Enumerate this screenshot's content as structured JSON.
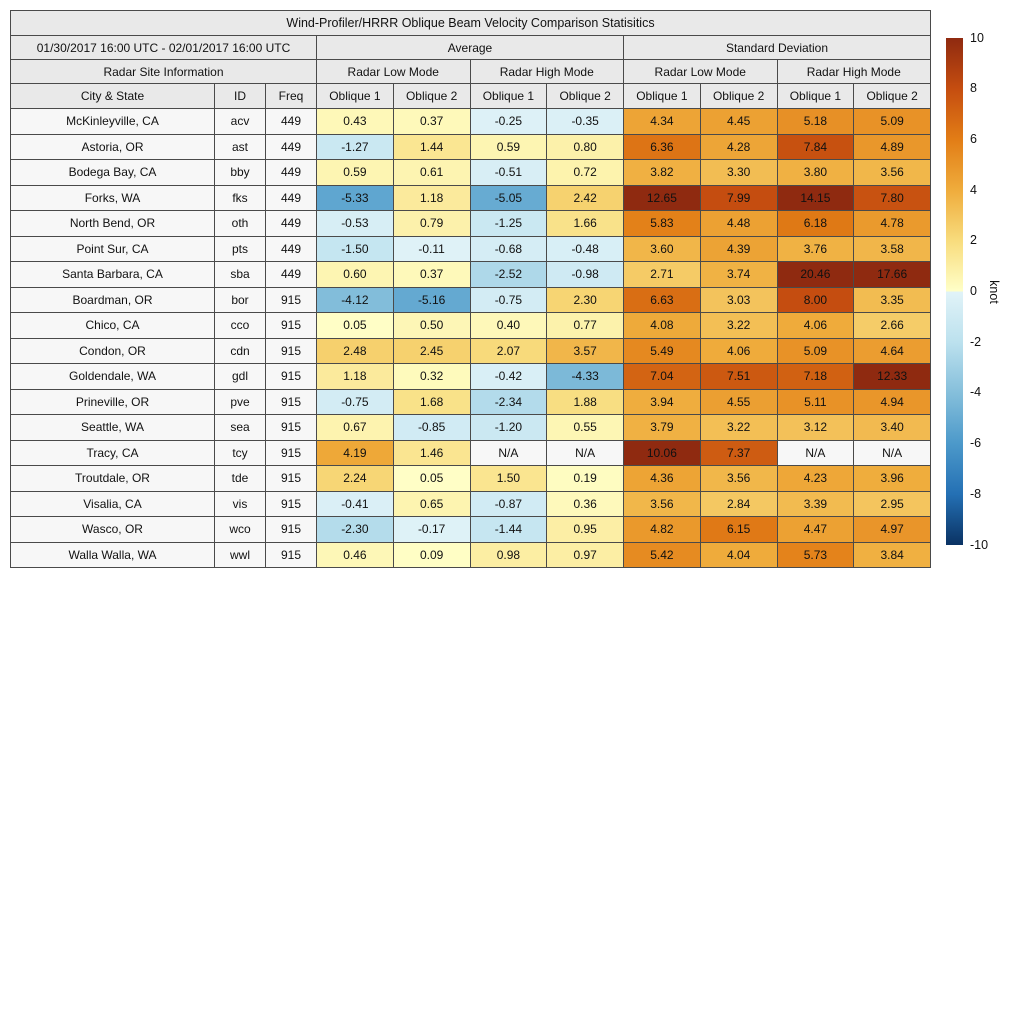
{
  "chart_data": {
    "type": "table",
    "title": "Wind-Profiler/HRRR Oblique Beam Velocity Comparison Statisitics",
    "date_range": "01/30/2017 16:00 UTC - 02/01/2017 16:00 UTC",
    "group_headers": {
      "average": "Average",
      "std_dev": "Standard Deviation"
    },
    "section_headers": {
      "site_info": "Radar Site Information",
      "low_mode": "Radar Low Mode",
      "high_mode": "Radar High Mode"
    },
    "column_headers": {
      "city": "City & State",
      "id": "ID",
      "freq": "Freq",
      "oblique1": "Oblique 1",
      "oblique2": "Oblique 2"
    },
    "rows": [
      {
        "city": "McKinleyville, CA",
        "id": "acv",
        "freq": "449",
        "values": [
          "0.43",
          "0.37",
          "-0.25",
          "-0.35",
          "4.34",
          "4.45",
          "5.18",
          "5.09"
        ]
      },
      {
        "city": "Astoria, OR",
        "id": "ast",
        "freq": "449",
        "values": [
          "-1.27",
          "1.44",
          "0.59",
          "0.80",
          "6.36",
          "4.28",
          "7.84",
          "4.89"
        ]
      },
      {
        "city": "Bodega Bay, CA",
        "id": "bby",
        "freq": "449",
        "values": [
          "0.59",
          "0.61",
          "-0.51",
          "0.72",
          "3.82",
          "3.30",
          "3.80",
          "3.56"
        ]
      },
      {
        "city": "Forks, WA",
        "id": "fks",
        "freq": "449",
        "values": [
          "-5.33",
          "1.18",
          "-5.05",
          "2.42",
          "12.65",
          "7.99",
          "14.15",
          "7.80"
        ]
      },
      {
        "city": "North Bend, OR",
        "id": "oth",
        "freq": "449",
        "values": [
          "-0.53",
          "0.79",
          "-1.25",
          "1.66",
          "5.83",
          "4.48",
          "6.18",
          "4.78"
        ]
      },
      {
        "city": "Point Sur, CA",
        "id": "pts",
        "freq": "449",
        "values": [
          "-1.50",
          "-0.11",
          "-0.68",
          "-0.48",
          "3.60",
          "4.39",
          "3.76",
          "3.58"
        ]
      },
      {
        "city": "Santa Barbara, CA",
        "id": "sba",
        "freq": "449",
        "values": [
          "0.60",
          "0.37",
          "-2.52",
          "-0.98",
          "2.71",
          "3.74",
          "20.46",
          "17.66"
        ]
      },
      {
        "city": "Boardman, OR",
        "id": "bor",
        "freq": "915",
        "values": [
          "-4.12",
          "-5.16",
          "-0.75",
          "2.30",
          "6.63",
          "3.03",
          "8.00",
          "3.35"
        ]
      },
      {
        "city": "Chico, CA",
        "id": "cco",
        "freq": "915",
        "values": [
          "0.05",
          "0.50",
          "0.40",
          "0.77",
          "4.08",
          "3.22",
          "4.06",
          "2.66"
        ]
      },
      {
        "city": "Condon, OR",
        "id": "cdn",
        "freq": "915",
        "values": [
          "2.48",
          "2.45",
          "2.07",
          "3.57",
          "5.49",
          "4.06",
          "5.09",
          "4.64"
        ]
      },
      {
        "city": "Goldendale, WA",
        "id": "gdl",
        "freq": "915",
        "values": [
          "1.18",
          "0.32",
          "-0.42",
          "-4.33",
          "7.04",
          "7.51",
          "7.18",
          "12.33"
        ]
      },
      {
        "city": "Prineville, OR",
        "id": "pve",
        "freq": "915",
        "values": [
          "-0.75",
          "1.68",
          "-2.34",
          "1.88",
          "3.94",
          "4.55",
          "5.11",
          "4.94"
        ]
      },
      {
        "city": "Seattle, WA",
        "id": "sea",
        "freq": "915",
        "values": [
          "0.67",
          "-0.85",
          "-1.20",
          "0.55",
          "3.79",
          "3.22",
          "3.12",
          "3.40"
        ]
      },
      {
        "city": "Tracy, CA",
        "id": "tcy",
        "freq": "915",
        "values": [
          "4.19",
          "1.46",
          "N/A",
          "N/A",
          "10.06",
          "7.37",
          "N/A",
          "N/A"
        ]
      },
      {
        "city": "Troutdale, OR",
        "id": "tde",
        "freq": "915",
        "values": [
          "2.24",
          "0.05",
          "1.50",
          "0.19",
          "4.36",
          "3.56",
          "4.23",
          "3.96"
        ]
      },
      {
        "city": "Visalia, CA",
        "id": "vis",
        "freq": "915",
        "values": [
          "-0.41",
          "0.65",
          "-0.87",
          "0.36",
          "3.56",
          "2.84",
          "3.39",
          "2.95"
        ]
      },
      {
        "city": "Wasco, OR",
        "id": "wco",
        "freq": "915",
        "values": [
          "-2.30",
          "-0.17",
          "-1.44",
          "0.95",
          "4.82",
          "6.15",
          "4.47",
          "4.97"
        ]
      },
      {
        "city": "Walla Walla, WA",
        "id": "wwl",
        "freq": "915",
        "values": [
          "0.46",
          "0.09",
          "0.98",
          "0.97",
          "5.42",
          "4.04",
          "5.73",
          "3.84"
        ]
      }
    ],
    "colorbar": {
      "unit_label": "knot",
      "range": [
        -10,
        10
      ],
      "ticks": [
        10,
        8,
        6,
        4,
        2,
        0,
        -2,
        -4,
        -6,
        -8,
        -10
      ],
      "na_text": "N/A",
      "na_color": "#f7f7f7",
      "stops": [
        {
          "value": -10,
          "color": "#0a3263"
        },
        {
          "value": -8,
          "color": "#2470b4"
        },
        {
          "value": -6,
          "color": "#4c99ca"
        },
        {
          "value": -4,
          "color": "#85bfdb"
        },
        {
          "value": -2,
          "color": "#bce1ee"
        },
        {
          "value": -0.01,
          "color": "#e1f3f8"
        },
        {
          "value": 0.01,
          "color": "#ffffc8"
        },
        {
          "value": 2,
          "color": "#f8dc7d"
        },
        {
          "value": 4,
          "color": "#efac3c"
        },
        {
          "value": 6,
          "color": "#e27d16"
        },
        {
          "value": 8,
          "color": "#c54d10"
        },
        {
          "value": 10,
          "color": "#8f2a10"
        }
      ]
    },
    "theme": {
      "header_bg": "#e9e9e9",
      "label_bg": "#f7f7f7",
      "border_color": "#4a4a4a",
      "text_color": "#111111"
    }
  }
}
